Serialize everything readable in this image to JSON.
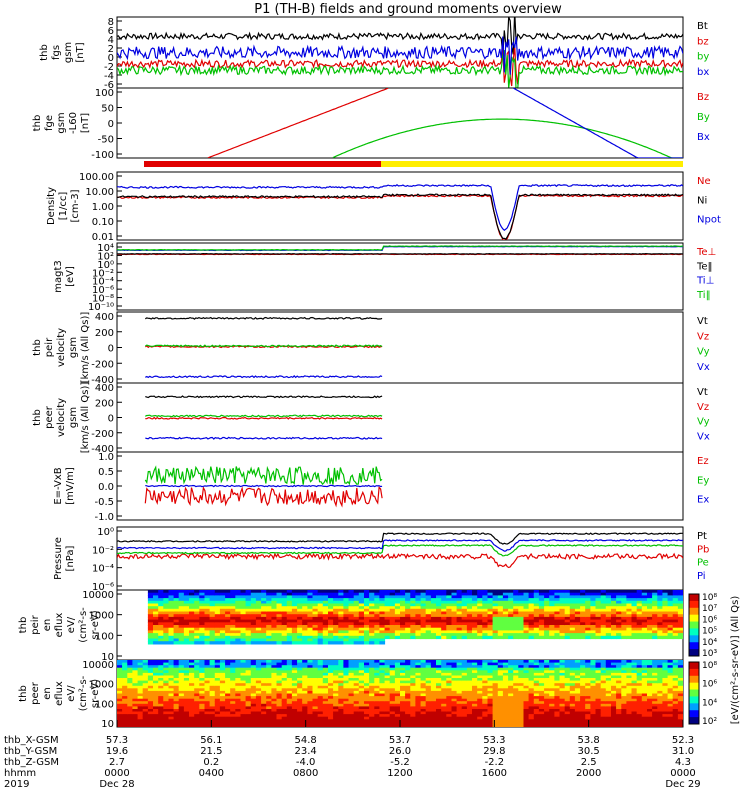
{
  "title": "P1 (TH-B) fields and ground moments overview",
  "chart_data": [
    {
      "type": "line",
      "name": "fgs",
      "ylabel": [
        "thb",
        "fgs",
        "gsm",
        "[nT]"
      ],
      "yticks": [
        "8",
        "6",
        "4",
        "2",
        "0",
        "-2",
        "-4",
        "-6"
      ],
      "ylim": [
        -6,
        8
      ],
      "series": [
        {
          "name": "Bt",
          "color": "#000000",
          "level": 4.2,
          "noise": 0.6,
          "style": "bt"
        },
        {
          "name": "bz",
          "color": "#e00000",
          "level": -1.2,
          "noise": 0.7
        },
        {
          "name": "by",
          "color": "#00c000",
          "level": -2.5,
          "noise": 0.8
        },
        {
          "name": "bx",
          "color": "#0000e0",
          "level": 1.0,
          "noise": 1.2
        }
      ]
    },
    {
      "type": "line",
      "name": "fge",
      "ylabel": [
        "thb",
        "fge",
        "gsm",
        "-L60",
        "[nT]"
      ],
      "yticks": [
        "100",
        "50",
        "0",
        "-50",
        "-100"
      ],
      "ylim": [
        -125,
        100
      ],
      "series": [
        {
          "name": "Bz",
          "color": "#e00000",
          "style": "bz"
        },
        {
          "name": "By",
          "color": "#00c000",
          "style": "by"
        },
        {
          "name": "Bx",
          "color": "#0000e0",
          "style": "bx"
        }
      ]
    },
    {
      "type": "line",
      "name": "density",
      "ylabel": [
        "Density",
        "[1/cc]",
        "[cm-3]"
      ],
      "yticks": [
        "100.00",
        "10.00",
        "1.00",
        "0.10",
        "0.01"
      ],
      "ylim": [
        0.01,
        100
      ],
      "scale": "log",
      "series": [
        {
          "name": "Ne",
          "color": "#e00000"
        },
        {
          "name": "Ni",
          "color": "#000000"
        },
        {
          "name": "Npot",
          "color": "#0000e0"
        }
      ]
    },
    {
      "type": "line",
      "name": "temperature",
      "ylabel": [
        "magt3",
        "[eV]"
      ],
      "yticks": [
        "10⁴",
        "10²",
        "10⁰",
        "10⁻²",
        "10⁻⁴",
        "10⁻⁶",
        "10⁻⁸",
        "10⁻¹⁰"
      ],
      "scale": "log",
      "series": [
        {
          "name": "Te⊥",
          "color": "#e00000"
        },
        {
          "name": "Te‖",
          "color": "#000000"
        },
        {
          "name": "Ti⊥",
          "color": "#0000e0"
        },
        {
          "name": "Ti‖",
          "color": "#00c000"
        }
      ]
    },
    {
      "type": "line",
      "name": "peir-velocity",
      "ylabel": [
        "thb",
        "peir",
        "velocity",
        "gsm",
        "[km/s (All Qs)]"
      ],
      "yticks": [
        "400",
        "200",
        "0",
        "-200",
        "-400"
      ],
      "ylim": [
        -450,
        450
      ],
      "series": [
        {
          "name": "Vt",
          "color": "#000000",
          "level": 370
        },
        {
          "name": "Vz",
          "color": "#e00000",
          "level": 10
        },
        {
          "name": "Vy",
          "color": "#00c000",
          "level": 20
        },
        {
          "name": "Vx",
          "color": "#0000e0",
          "level": -370
        }
      ]
    },
    {
      "type": "line",
      "name": "peer-velocity",
      "ylabel": [
        "thb",
        "peer",
        "velocity",
        "gsm",
        "[km/s (All Qs)]"
      ],
      "yticks": [
        "400",
        "200",
        "0",
        "-200",
        "-400"
      ],
      "ylim": [
        -450,
        450
      ],
      "series": [
        {
          "name": "Vt",
          "color": "#000000",
          "level": 270
        },
        {
          "name": "Vz",
          "color": "#e00000",
          "level": -10
        },
        {
          "name": "Vy",
          "color": "#00c000",
          "level": 20
        },
        {
          "name": "Vx",
          "color": "#0000e0",
          "level": -270
        }
      ]
    },
    {
      "type": "line",
      "name": "e-field",
      "ylabel": [
        "E=-VxB",
        "[mV/m]"
      ],
      "yticks": [
        "1.0",
        "0.5",
        "0.0",
        "-0.5",
        "-1.0"
      ],
      "ylim": [
        -1.3,
        1.3
      ],
      "series": [
        {
          "name": "Ez",
          "color": "#e00000",
          "level": -0.4
        },
        {
          "name": "Ey",
          "color": "#00c000",
          "level": 0.4
        },
        {
          "name": "Ex",
          "color": "#0000e0",
          "level": 0.0
        }
      ]
    },
    {
      "type": "line",
      "name": "pressure",
      "ylabel": [
        "Pressure",
        "[nPa]"
      ],
      "yticks": [
        "10⁰",
        "10⁻²",
        "10⁻⁴",
        "10⁻⁶"
      ],
      "scale": "log",
      "series": [
        {
          "name": "Pt",
          "color": "#000000"
        },
        {
          "name": "Pb",
          "color": "#e00000"
        },
        {
          "name": "Pe",
          "color": "#00c000"
        },
        {
          "name": "Pi",
          "color": "#0000e0"
        }
      ]
    },
    {
      "type": "heatmap",
      "name": "peir-en-eflux",
      "ylabel": [
        "thb",
        "peir",
        "en",
        "eflux",
        "eV/",
        "(cm²-s-",
        "sr-eV)"
      ],
      "yticks": [
        "10000",
        "1000",
        "100",
        "10"
      ],
      "scale": "log"
    },
    {
      "type": "heatmap",
      "name": "peer-en-eflux",
      "ylabel": [
        "thb",
        "peer",
        "en",
        "eflux",
        "eV/",
        "(cm²-s-",
        "sr-eV)"
      ],
      "yticks": [
        "10000",
        "1000",
        "100",
        "10"
      ],
      "scale": "log"
    }
  ],
  "colorbar": {
    "ticks": [
      "10⁸",
      "10⁷",
      "10⁶",
      "10⁵",
      "10⁴",
      "10³"
    ],
    "label": "[eV/(cm²-s-sr-eV)] (All Qs)",
    "ticks2": [
      "10⁸",
      "10⁶",
      "10⁴",
      "10²"
    ]
  },
  "x_axis": {
    "rows": [
      {
        "label": "thb_X-GSM",
        "values": [
          "57.3",
          "56.1",
          "54.8",
          "53.7",
          "53.3",
          "53.8",
          "52.3"
        ]
      },
      {
        "label": "thb_Y-GSM",
        "values": [
          "19.6",
          "21.5",
          "23.4",
          "26.0",
          "29.8",
          "30.5",
          "31.0"
        ]
      },
      {
        "label": "thb_Z-GSM",
        "values": [
          "2.7",
          "0.2",
          "-4.0",
          "-5.2",
          "-2.2",
          "2.5",
          "4.3"
        ]
      },
      {
        "label": "hhmm",
        "values": [
          "0000",
          "0400",
          "0800",
          "1200",
          "1600",
          "2000",
          "0000"
        ]
      },
      {
        "label": "2019",
        "values": [
          "Dec 28",
          "",
          "",
          "",
          "",
          "",
          "Dec 29"
        ]
      }
    ]
  }
}
